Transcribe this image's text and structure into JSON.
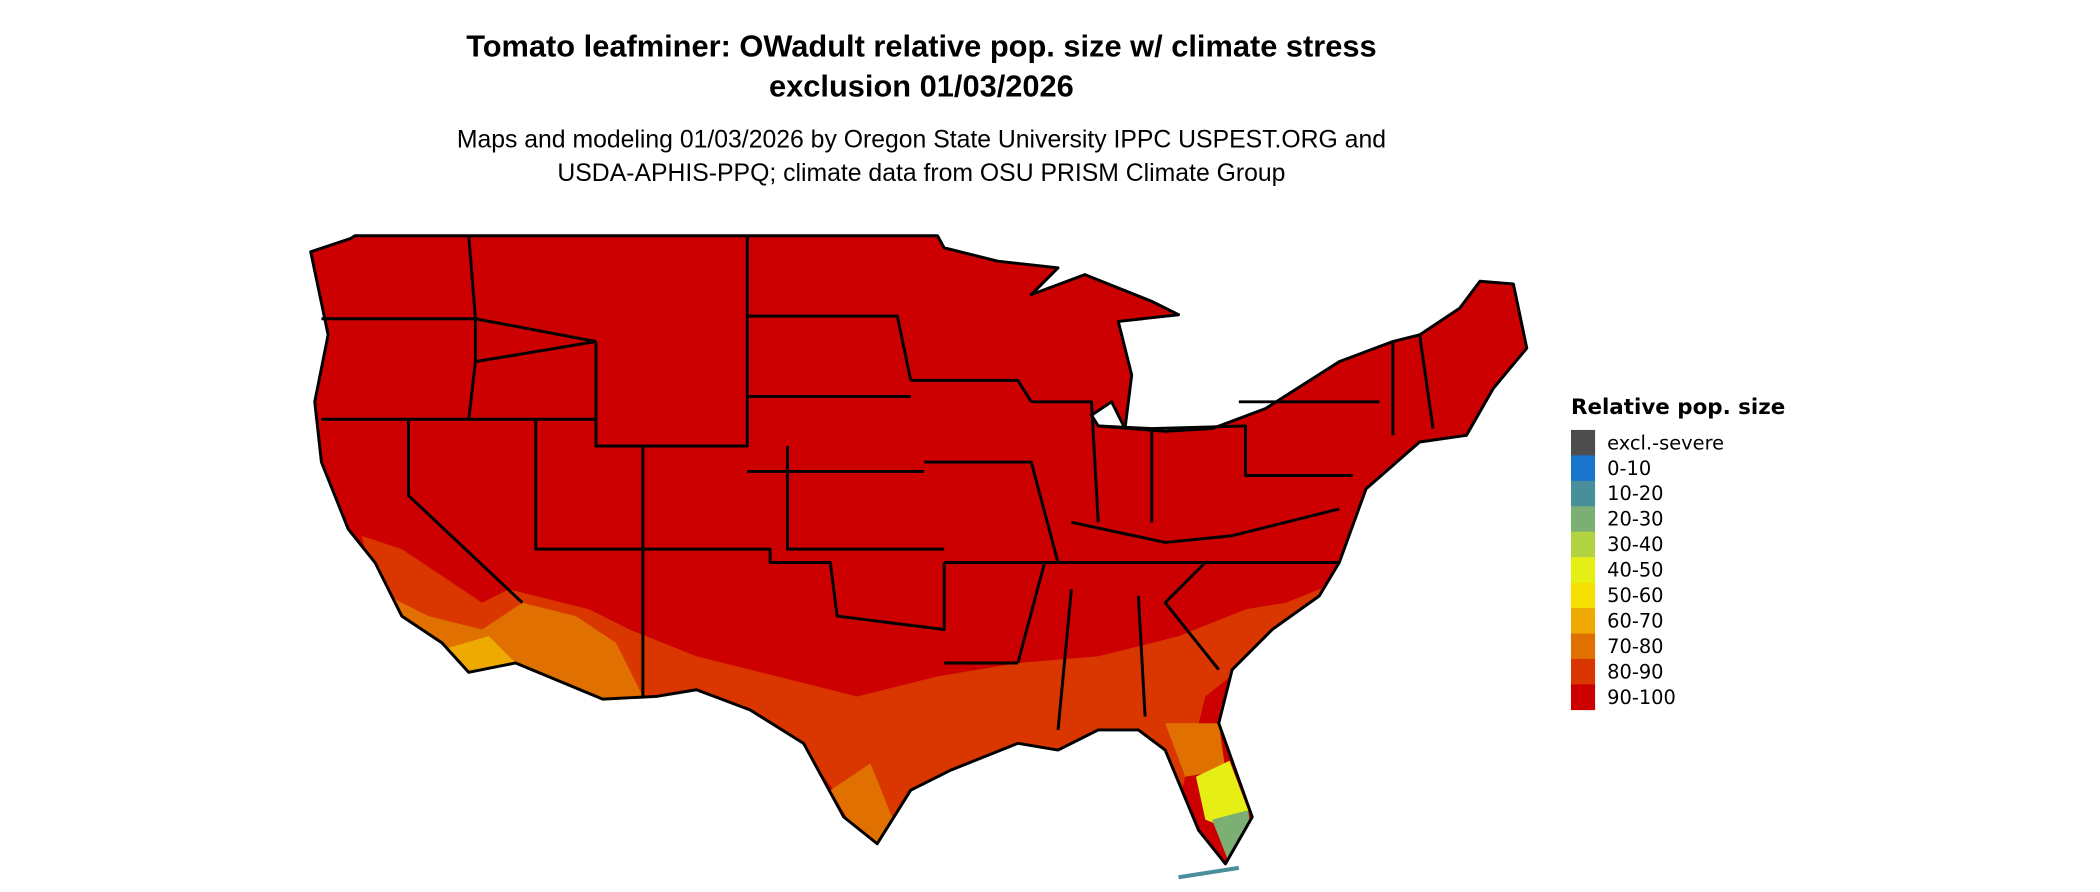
{
  "title": {
    "line1": "Tomato leafminer: OWadult relative pop. size w/ climate stress",
    "line2": "exclusion 01/03/2026"
  },
  "subtitle": {
    "line1": "Maps and modeling 01/03/2026 by Oregon State University IPPC USPEST.ORG and",
    "line2": "USDA-APHIS-PPQ; climate data from OSU PRISM Climate Group"
  },
  "legend": {
    "title": "Relative pop. size",
    "items": [
      {
        "label": "excl.-severe",
        "color": "#4d4d4d"
      },
      {
        "label": "0-10",
        "color": "#1874cd"
      },
      {
        "label": "10-20",
        "color": "#488f9b"
      },
      {
        "label": "20-30",
        "color": "#7caf74"
      },
      {
        "label": "30-40",
        "color": "#b2d342"
      },
      {
        "label": "40-50",
        "color": "#e5ef16"
      },
      {
        "label": "50-60",
        "color": "#f7e000"
      },
      {
        "label": "60-70",
        "color": "#eeaa00"
      },
      {
        "label": "70-80",
        "color": "#e07000"
      },
      {
        "label": "80-90",
        "color": "#d93600"
      },
      {
        "label": "90-100",
        "color": "#cc0000"
      }
    ]
  },
  "map": {
    "region": "Contiguous United States",
    "dominant_class": "90-100",
    "southern_classes": [
      "80-90",
      "70-80",
      "60-70"
    ],
    "south_florida_classes": [
      "40-50",
      "20-30",
      "10-20"
    ]
  }
}
